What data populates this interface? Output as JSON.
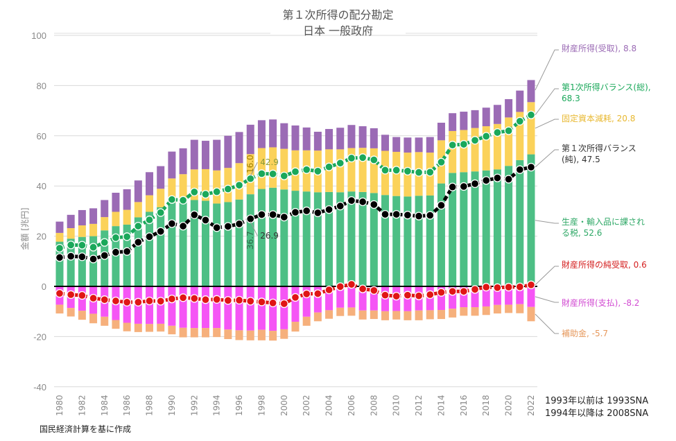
{
  "chart_data": {
    "type": "bar",
    "title": "第１次所得の配分勘定",
    "subtitle": "日本 一般政府",
    "ylabel": "金額 [兆円]",
    "xlabel": "",
    "ylim": [
      -40,
      100
    ],
    "yticks": [
      100,
      80,
      60,
      40,
      20,
      0,
      -20,
      -40
    ],
    "grid": true,
    "x": [
      1980,
      1981,
      1982,
      1983,
      1984,
      1985,
      1986,
      1987,
      1988,
      1989,
      1990,
      1991,
      1992,
      1993,
      1994,
      1995,
      1996,
      1997,
      1998,
      1999,
      2000,
      2001,
      2002,
      2003,
      2004,
      2005,
      2006,
      2007,
      2008,
      2009,
      2010,
      2011,
      2012,
      2013,
      2014,
      2015,
      2016,
      2017,
      2018,
      2019,
      2020,
      2021,
      2022
    ],
    "xticks": [
      "1980",
      "1982",
      "1984",
      "1986",
      "1988",
      "1990",
      "1992",
      "1994",
      "1996",
      "1998",
      "2000",
      "2002",
      "2004",
      "2006",
      "2008",
      "2010",
      "2012",
      "2014",
      "2016",
      "2018",
      "2020",
      "2022"
    ],
    "stacked_positive": [
      {
        "name": "生産・輸入品に課される税",
        "color": "#4dbf85",
        "values": [
          17.8,
          19.0,
          19.7,
          20.0,
          22.3,
          24.0,
          24.6,
          27.5,
          29.7,
          31.5,
          33.4,
          34.3,
          34.4,
          34.1,
          33.0,
          33.6,
          34.6,
          36.7,
          38.8,
          39.3,
          38.6,
          38.1,
          37.8,
          37.5,
          37.6,
          37.5,
          37.8,
          37.6,
          37.2,
          36.4,
          36.0,
          35.8,
          36.1,
          36.2,
          41.0,
          45.2,
          45.5,
          45.8,
          46.2,
          46.6,
          48.0,
          50.3,
          52.6
        ]
      },
      {
        "name": "固定資本減耗",
        "color": "#fbd25a",
        "values": [
          3.5,
          4.2,
          4.6,
          4.9,
          5.3,
          5.7,
          5.9,
          6.1,
          6.6,
          7.4,
          9.6,
          10.4,
          12.2,
          12.6,
          13.2,
          13.6,
          14.5,
          16.0,
          16.3,
          16.1,
          16.2,
          16.1,
          16.4,
          16.6,
          17.0,
          17.1,
          17.3,
          17.6,
          17.8,
          17.6,
          17.6,
          17.5,
          17.4,
          17.1,
          17.2,
          16.7,
          16.8,
          17.3,
          17.6,
          18.1,
          19.3,
          19.2,
          20.8
        ]
      },
      {
        "name": "財産所得(受取)",
        "color": "#9b6bb5",
        "values": [
          4.5,
          5.3,
          6.1,
          6.2,
          6.8,
          7.6,
          8.2,
          8.6,
          9.2,
          9.0,
          10.7,
          10.3,
          11.8,
          11.3,
          12.2,
          12.8,
          12.4,
          11.7,
          11.1,
          11.1,
          10.2,
          9.9,
          9.1,
          7.5,
          8.1,
          8.6,
          9.2,
          8.6,
          8.0,
          6.4,
          5.9,
          6.0,
          5.8,
          6.2,
          7.0,
          7.1,
          7.3,
          7.1,
          7.4,
          7.6,
          7.3,
          8.5,
          8.8
        ]
      }
    ],
    "stacked_negative": [
      {
        "name": "財産所得(支払)",
        "color": "#f555f5",
        "values": [
          -7.3,
          -8.6,
          -9.7,
          -10.9,
          -12.1,
          -13.4,
          -14.5,
          -14.9,
          -15.0,
          -14.9,
          -15.7,
          -16.5,
          -16.6,
          -16.6,
          -16.6,
          -17.2,
          -17.5,
          -17.6,
          -17.3,
          -17.7,
          -17.1,
          -14.1,
          -12.1,
          -10.4,
          -9.5,
          -8.5,
          -8.4,
          -9.6,
          -9.6,
          -9.9,
          -9.8,
          -9.9,
          -9.6,
          -9.5,
          -9.4,
          -8.9,
          -8.3,
          -8.3,
          -8.0,
          -7.4,
          -7.3,
          -7.1,
          -8.2
        ]
      },
      {
        "name": "補助金",
        "color": "#f6b07c",
        "values": [
          -3.5,
          -3.4,
          -3.6,
          -3.8,
          -3.6,
          -3.5,
          -3.4,
          -3.3,
          -3.1,
          -3.1,
          -3.4,
          -3.8,
          -3.7,
          -3.7,
          -3.6,
          -3.8,
          -3.9,
          -3.9,
          -4.2,
          -3.9,
          -3.8,
          -3.9,
          -3.6,
          -3.5,
          -3.4,
          -3.3,
          -3.3,
          -3.6,
          -3.4,
          -3.6,
          -3.4,
          -3.6,
          -3.9,
          -3.6,
          -3.6,
          -3.5,
          -3.4,
          -3.4,
          -3.4,
          -3.4,
          -3.3,
          -3.6,
          -5.7
        ]
      }
    ],
    "lines": [
      {
        "name": "第１次所得バランス(総)",
        "color": "#1aa85a",
        "values": [
          15.2,
          16.5,
          16.4,
          15.6,
          17.5,
          19.4,
          19.8,
          24.0,
          26.5,
          29.4,
          34.6,
          34.3,
          37.6,
          36.7,
          37.7,
          38.8,
          40.3,
          42.9,
          44.9,
          44.8,
          44.0,
          45.7,
          46.5,
          45.9,
          47.6,
          49.1,
          51.1,
          51.3,
          50.4,
          46.3,
          46.3,
          45.9,
          45.4,
          45.5,
          49.5,
          56.3,
          56.6,
          58.2,
          59.8,
          61.3,
          62.0,
          65.8,
          68.3
        ]
      },
      {
        "name": "第１次所得バランス(純)",
        "color": "#000000",
        "values": [
          11.5,
          12.0,
          11.8,
          10.9,
          12.3,
          13.6,
          13.9,
          17.6,
          19.8,
          21.9,
          25.0,
          24.0,
          28.5,
          26.4,
          23.4,
          23.9,
          24.9,
          26.9,
          28.6,
          28.6,
          27.6,
          29.5,
          30.1,
          29.3,
          30.6,
          32.0,
          34.2,
          33.7,
          32.6,
          28.7,
          28.7,
          28.4,
          28.0,
          28.3,
          32.3,
          39.6,
          39.8,
          40.9,
          42.2,
          43.2,
          42.7,
          46.5,
          47.5
        ]
      },
      {
        "name": "財産所得の純受取",
        "color": "#e01515",
        "values": [
          -2.8,
          -3.3,
          -3.6,
          -4.7,
          -5.3,
          -5.8,
          -6.3,
          -6.3,
          -5.8,
          -5.9,
          -5.0,
          -4.5,
          -4.8,
          -5.3,
          -5.2,
          -5.6,
          -5.5,
          -5.9,
          -6.2,
          -6.6,
          -6.9,
          -4.4,
          -3.0,
          -2.9,
          -1.4,
          -0.1,
          0.8,
          -1.0,
          -1.6,
          -3.5,
          -3.9,
          -3.5,
          -3.8,
          -3.3,
          -2.4,
          -2.0,
          -2.0,
          -1.2,
          -0.3,
          -0.5,
          -0.3,
          -0.2,
          0.6
        ]
      }
    ],
    "annotations": [
      {
        "text": "財産所得(受取), 8.8",
        "color": "#9b6bb5"
      },
      {
        "text": "第1次所得バランス(総), 68.3",
        "color": "#1aa85a"
      },
      {
        "text": "固定資本減耗, 20.8",
        "color": "#e8b830"
      },
      {
        "text": "第１次所得バランス(純), 47.5",
        "color": "#333333"
      },
      {
        "text": "生産・輸入品に課される税, 52.6",
        "color": "#2ea866"
      },
      {
        "text": "財産所得の純受取, 0.6",
        "color": "#d42020"
      },
      {
        "text": "財産所得(支払), -8.2",
        "color": "#d24ad2"
      },
      {
        "text": "補助金, -5.7",
        "color": "#e6985c"
      }
    ],
    "inline_labels": [
      {
        "text": "16.0",
        "series": "固定資本減耗",
        "year": 1997,
        "color": "#a08000"
      },
      {
        "text": "42.9",
        "series": "第１次所得バランス(総)",
        "year": 1997,
        "color": "#8a9a3a"
      },
      {
        "text": "36.7",
        "series": "生産・輸入品に課される税",
        "year": 1997,
        "color": "#2d6a4a"
      },
      {
        "text": "26.9",
        "series": "第１次所得バランス(純)",
        "year": 1997,
        "color": "#333333"
      }
    ]
  },
  "notes": {
    "sna_line1": "1993年以前は 1993SNA",
    "sna_line2": "1994年以降は 2008SNA",
    "source": "国民経済計算を基に作成"
  }
}
